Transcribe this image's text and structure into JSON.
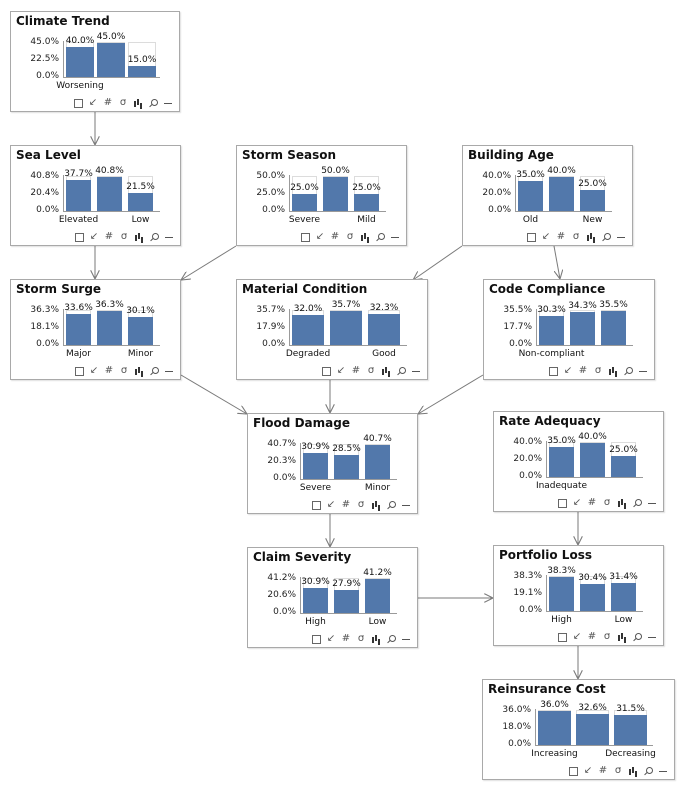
{
  "colors": {
    "bar": "#5278ab",
    "border": "#a9a9a9",
    "edge": "#7a7a7a"
  },
  "toolbar_icons": [
    "select-icon",
    "arrow-icon",
    "hash-icon",
    "sigma-icon",
    "histogram-icon",
    "zoom-icon",
    "minimize-icon"
  ],
  "nodes": [
    {
      "id": "climate_trend",
      "title": "Climate Trend",
      "ticks": [
        "45.0%",
        "22.5%",
        "0.0%"
      ],
      "ymax": 45.0,
      "bars": [
        {
          "value": 40.0,
          "label": "40.0%"
        },
        {
          "value": 45.0,
          "label": "45.0%"
        },
        {
          "value": 15.0,
          "label": "15.0%"
        }
      ],
      "xlabels": [
        "Worsening",
        "",
        ""
      ]
    },
    {
      "id": "sea_level",
      "title": "Sea Level",
      "ticks": [
        "40.8%",
        "20.4%",
        "0.0%"
      ],
      "ymax": 40.8,
      "bars": [
        {
          "value": 37.7,
          "label": "37.7%"
        },
        {
          "value": 40.8,
          "label": "40.8%"
        },
        {
          "value": 21.5,
          "label": "21.5%"
        }
      ],
      "xlabels": [
        "Elevated",
        "",
        "Low"
      ]
    },
    {
      "id": "storm_season",
      "title": "Storm Season",
      "ticks": [
        "50.0%",
        "25.0%",
        "0.0%"
      ],
      "ymax": 50.0,
      "bars": [
        {
          "value": 25.0,
          "label": "25.0%"
        },
        {
          "value": 50.0,
          "label": "50.0%"
        },
        {
          "value": 25.0,
          "label": "25.0%"
        }
      ],
      "xlabels": [
        "Severe",
        "",
        "Mild"
      ]
    },
    {
      "id": "building_age",
      "title": "Building Age",
      "ticks": [
        "40.0%",
        "20.0%",
        "0.0%"
      ],
      "ymax": 40.0,
      "bars": [
        {
          "value": 35.0,
          "label": "35.0%"
        },
        {
          "value": 40.0,
          "label": "40.0%"
        },
        {
          "value": 25.0,
          "label": "25.0%"
        }
      ],
      "xlabels": [
        "Old",
        "",
        "New"
      ]
    },
    {
      "id": "storm_surge",
      "title": "Storm Surge",
      "ticks": [
        "36.3%",
        "18.1%",
        "0.0%"
      ],
      "ymax": 36.3,
      "bars": [
        {
          "value": 33.6,
          "label": "33.6%"
        },
        {
          "value": 36.3,
          "label": "36.3%"
        },
        {
          "value": 30.1,
          "label": "30.1%"
        }
      ],
      "xlabels": [
        "Major",
        "",
        "Minor"
      ]
    },
    {
      "id": "material_condition",
      "title": "Material Condition",
      "ticks": [
        "35.7%",
        "17.9%",
        "0.0%"
      ],
      "ymax": 35.7,
      "bars": [
        {
          "value": 32.0,
          "label": "32.0%"
        },
        {
          "value": 35.7,
          "label": "35.7%"
        },
        {
          "value": 32.3,
          "label": "32.3%"
        }
      ],
      "xlabels": [
        "Degraded",
        "",
        "Good"
      ]
    },
    {
      "id": "code_compliance",
      "title": "Code Compliance",
      "ticks": [
        "35.5%",
        "17.7%",
        "0.0%"
      ],
      "ymax": 35.5,
      "bars": [
        {
          "value": 30.3,
          "label": "30.3%"
        },
        {
          "value": 34.3,
          "label": "34.3%"
        },
        {
          "value": 35.5,
          "label": "35.5%"
        }
      ],
      "xlabels": [
        "Non-compliant",
        "",
        ""
      ]
    },
    {
      "id": "flood_damage",
      "title": "Flood Damage",
      "ticks": [
        "40.7%",
        "20.3%",
        "0.0%"
      ],
      "ymax": 40.7,
      "bars": [
        {
          "value": 30.9,
          "label": "30.9%"
        },
        {
          "value": 28.5,
          "label": "28.5%"
        },
        {
          "value": 40.7,
          "label": "40.7%"
        }
      ],
      "xlabels": [
        "Severe",
        "",
        "Minor"
      ]
    },
    {
      "id": "rate_adequacy",
      "title": "Rate Adequacy",
      "ticks": [
        "40.0%",
        "20.0%",
        "0.0%"
      ],
      "ymax": 40.0,
      "bars": [
        {
          "value": 35.0,
          "label": "35.0%"
        },
        {
          "value": 40.0,
          "label": "40.0%"
        },
        {
          "value": 25.0,
          "label": "25.0%"
        }
      ],
      "xlabels": [
        "Inadequate",
        "",
        ""
      ]
    },
    {
      "id": "claim_severity",
      "title": "Claim Severity",
      "ticks": [
        "41.2%",
        "20.6%",
        "0.0%"
      ],
      "ymax": 41.2,
      "bars": [
        {
          "value": 30.9,
          "label": "30.9%"
        },
        {
          "value": 27.9,
          "label": "27.9%"
        },
        {
          "value": 41.2,
          "label": "41.2%"
        }
      ],
      "xlabels": [
        "High",
        "",
        "Low"
      ]
    },
    {
      "id": "portfolio_loss",
      "title": "Portfolio Loss",
      "ticks": [
        "38.3%",
        "19.1%",
        "0.0%"
      ],
      "ymax": 38.3,
      "bars": [
        {
          "value": 38.3,
          "label": "38.3%"
        },
        {
          "value": 30.4,
          "label": "30.4%"
        },
        {
          "value": 31.4,
          "label": "31.4%"
        }
      ],
      "xlabels": [
        "High",
        "",
        "Low"
      ]
    },
    {
      "id": "reinsurance_cost",
      "title": "Reinsurance Cost",
      "ticks": [
        "36.0%",
        "18.0%",
        "0.0%"
      ],
      "ymax": 36.0,
      "bars": [
        {
          "value": 36.0,
          "label": "36.0%"
        },
        {
          "value": 32.6,
          "label": "32.6%"
        },
        {
          "value": 31.5,
          "label": "31.5%"
        }
      ],
      "xlabels": [
        "Increasing",
        "",
        "Decreasing"
      ]
    }
  ],
  "edges": [
    [
      "climate_trend",
      "sea_level"
    ],
    [
      "sea_level",
      "storm_surge"
    ],
    [
      "storm_season",
      "storm_surge"
    ],
    [
      "building_age",
      "material_condition"
    ],
    [
      "building_age",
      "code_compliance"
    ],
    [
      "storm_surge",
      "flood_damage"
    ],
    [
      "material_condition",
      "flood_damage"
    ],
    [
      "code_compliance",
      "flood_damage"
    ],
    [
      "flood_damage",
      "claim_severity"
    ],
    [
      "rate_adequacy",
      "portfolio_loss"
    ],
    [
      "claim_severity",
      "portfolio_loss"
    ],
    [
      "portfolio_loss",
      "reinsurance_cost"
    ]
  ]
}
